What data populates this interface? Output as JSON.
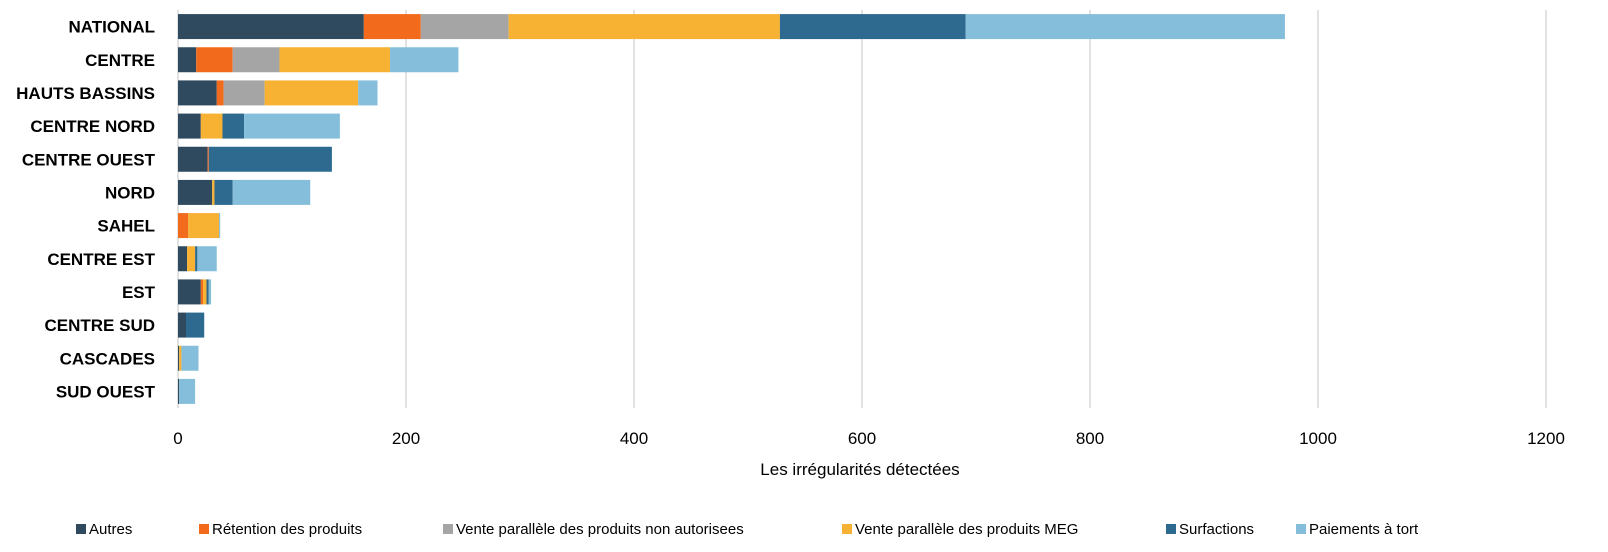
{
  "chart_data": {
    "type": "bar",
    "orientation": "horizontal",
    "stacked": true,
    "title": "",
    "xlabel": "Les irrégularités détectées",
    "ylabel": "",
    "xlim": [
      0,
      1200
    ],
    "xticks": [
      0,
      200,
      400,
      600,
      800,
      1000,
      1200
    ],
    "grid": "vertical",
    "legend_position": "bottom",
    "categories": [
      "NATIONAL",
      "CENTRE",
      "HAUTS BASSINS",
      "CENTRE NORD",
      "CENTRE OUEST",
      "NORD",
      "SAHEL",
      "CENTRE EST",
      "EST",
      "CENTRE SUD",
      "CASCADES",
      "SUD OUEST"
    ],
    "series": [
      {
        "name": "Autres",
        "color": "#2f4a5f",
        "values": [
          163,
          16,
          34,
          20,
          26,
          30,
          0,
          8,
          20,
          7,
          1,
          1
        ]
      },
      {
        "name": "Rétention des produits",
        "color": "#f26b1d",
        "values": [
          50,
          32,
          6,
          0,
          1,
          0,
          9,
          0,
          2,
          0,
          0,
          0
        ]
      },
      {
        "name": "Vente parallèle des produits non autorisees",
        "color": "#a5a5a5",
        "values": [
          77,
          41,
          36,
          0,
          0,
          0,
          0,
          0,
          0,
          0,
          0,
          0
        ]
      },
      {
        "name": "Vente parallèle des produits MEG",
        "color": "#f7b133",
        "values": [
          238,
          97,
          82,
          19,
          0,
          2,
          27,
          7,
          3,
          0,
          2,
          0
        ]
      },
      {
        "name": "Surfactions",
        "color": "#2e6a90",
        "values": [
          163,
          0,
          0,
          19,
          108,
          16,
          0,
          2,
          2,
          16,
          0,
          0
        ]
      },
      {
        "name": "Paiements à tort",
        "color": "#85bedb",
        "values": [
          280,
          60,
          17,
          84,
          0,
          68,
          1,
          17,
          2,
          0,
          15,
          14
        ]
      }
    ]
  }
}
